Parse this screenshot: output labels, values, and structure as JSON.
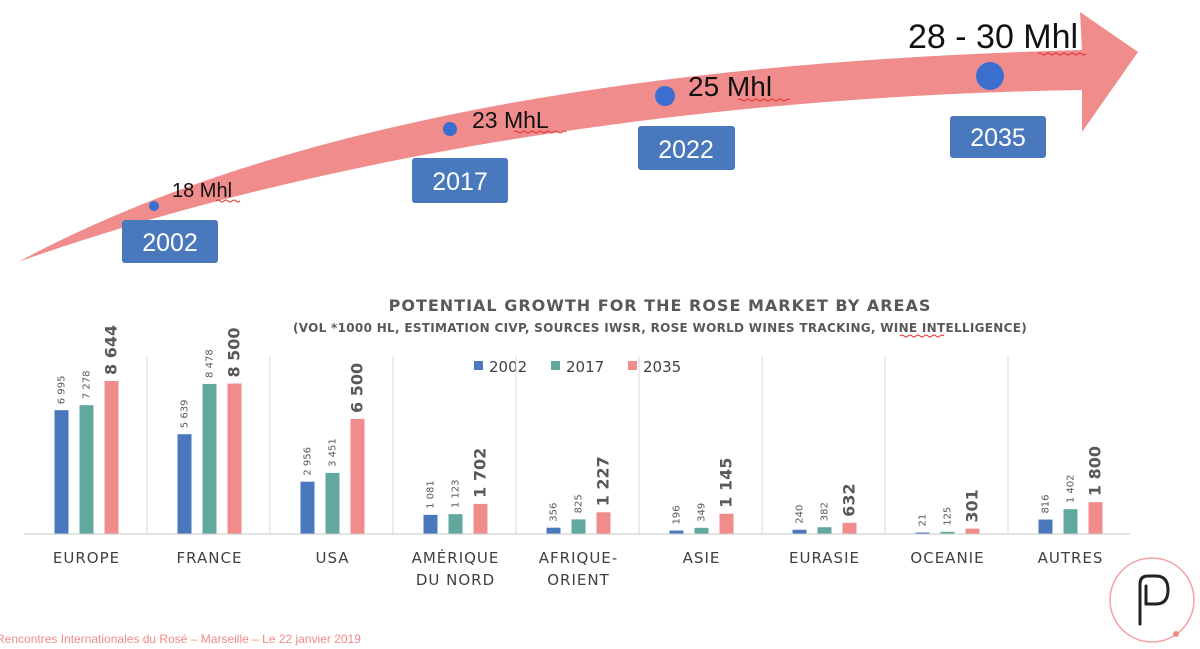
{
  "timeline": {
    "milestones": [
      {
        "year": "2002",
        "volume": "18 Mhl"
      },
      {
        "year": "2017",
        "volume": "23 MhL"
      },
      {
        "year": "2022",
        "volume": "25 Mhl"
      },
      {
        "year": "2035",
        "volume": "28 - 30 Mhl"
      }
    ],
    "arrow_color": "#f08c8c",
    "box_color": "#4a78bd",
    "dot_color": "#3a6fd0"
  },
  "chart_data": {
    "type": "bar",
    "title": "POTENTIAL GROWTH FOR THE ROSE MARKET BY AREAS",
    "subtitle": "(VOL *1000 HL, ESTIMATION CIVP, SOURCES IWSR, ROSE WORLD WINES TRACKING, WINE INTELLIGENCE)",
    "categories": [
      "EUROPE",
      "FRANCE",
      "USA",
      "AMÉRIQUE DU NORD",
      "AFRIQUE-ORIENT",
      "ASIE",
      "EURASIE",
      "OCEANIE",
      "AUTRES"
    ],
    "series": [
      {
        "name": "2002",
        "color": "#4a78bd",
        "values": [
          6995,
          5639,
          2956,
          1081,
          356,
          196,
          240,
          21,
          816
        ],
        "labels": [
          "6 995",
          "5 639",
          "2 956",
          "1 081",
          "356",
          "196",
          "240",
          "21",
          "816"
        ]
      },
      {
        "name": "2017",
        "color": "#62a89e",
        "values": [
          7278,
          8478,
          3451,
          1123,
          825,
          349,
          382,
          125,
          1402
        ],
        "labels": [
          "7 278",
          "8 478",
          "3 451",
          "1 123",
          "825",
          "349",
          "382",
          "125",
          "1 402"
        ]
      },
      {
        "name": "2035",
        "color": "#f08c8c",
        "values": [
          8644,
          8500,
          6500,
          1702,
          1227,
          1145,
          632,
          301,
          1800
        ],
        "labels": [
          "8 644",
          "8 500",
          "6 500",
          "1 702",
          "1 227",
          "1 145",
          "632",
          "301",
          "1 800"
        ]
      }
    ],
    "ylim": [
      0,
      8700
    ],
    "legend": "top-center",
    "grid": false
  },
  "footer": {
    "text": "Rencontres Internationales du Rosé – Marseille – Le 22 janvier 2019",
    "logo_icon": "p-logo-icon"
  }
}
